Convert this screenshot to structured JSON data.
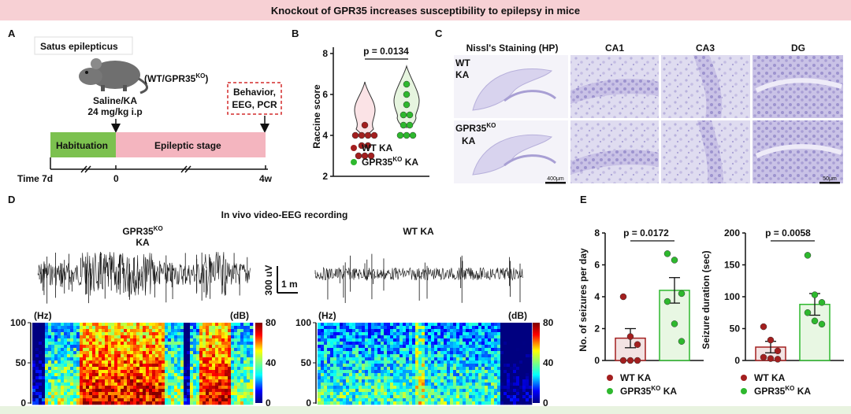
{
  "banner": "Knockout of GPR35 increases susceptibility to epilepsy in mice",
  "panels": {
    "a": "A",
    "b": "B",
    "c": "C",
    "d": "D",
    "e": "E"
  },
  "panelA": {
    "title": "Satus epilepticus",
    "genotype_prefix": "(WT/GPR35",
    "genotype_sup": "KO",
    "genotype_suffix": ")",
    "injection_line1": "Saline/KA",
    "injection_line2": "24 mg/kg i.p",
    "endpoint_line1": "Behavior,",
    "endpoint_line2": "EEG, PCR",
    "habituation": "Habituation",
    "epileptic": "Epileptic stage",
    "time_start": "Time 7d",
    "time_zero": "0",
    "time_end": "4w",
    "colors": {
      "habituation": "#7cc14f",
      "epileptic": "#f4b5bf"
    }
  },
  "panelB": {
    "ylabel": "Raccine score",
    "p_value": "p = 0.0134",
    "yticks": [
      "2",
      "4",
      "6",
      "8"
    ],
    "legend_wt": "WT KA",
    "legend_ko_prefix": "GPR35",
    "legend_ko_sup": "KO",
    "legend_ko_suffix": " KA",
    "colors": {
      "wt": "#a31f1f",
      "ko": "#2eb82e"
    }
  },
  "panelC": {
    "col_headers": [
      "Nissl's Staining (HP)",
      "CA1",
      "CA3",
      "DG"
    ],
    "row_wt": [
      "WT",
      "KA"
    ],
    "row_ko_prefix": "GPR35",
    "row_ko_sup": "KO",
    "row_ko_line2": "KA",
    "scale_big": "400μm",
    "scale_small": "50μm"
  },
  "panelD": {
    "title": "In vivo video-EEG recording",
    "ko_label_prefix": "GPR35",
    "ko_label_sup": "KO",
    "ko_label_line2": "KA",
    "wt_label": "WT KA",
    "scale_v": "300 uV",
    "scale_t": "1 m",
    "hz": "(Hz)",
    "db": "(dB)",
    "freq_ticks": [
      "100",
      "50",
      "0"
    ],
    "db_ticks": [
      "80",
      "40",
      "0"
    ]
  },
  "panelE": {
    "left_ylabel": "No. of seizures per day",
    "left_p": "p = 0.0172",
    "left_yticks": [
      "0",
      "2",
      "4",
      "6",
      "8"
    ],
    "right_ylabel": "Seizure duration (sec)",
    "right_p": "p = 0.0058",
    "right_yticks": [
      "0",
      "50",
      "100",
      "150",
      "200"
    ],
    "legend_wt": "WT KA",
    "legend_ko_prefix": "GPR35",
    "legend_ko_sup": "KO",
    "legend_ko_suffix": " KA"
  },
  "chart_data": [
    {
      "type": "violin",
      "title": "",
      "ylabel": "Raccine score",
      "ylim": [
        2,
        8
      ],
      "series": [
        {
          "name": "WT KA",
          "values": [
            3,
            3,
            3,
            3.5,
            3.5,
            4,
            4,
            4,
            4,
            4.5
          ]
        },
        {
          "name": "GPR35KO KA",
          "values": [
            4,
            4,
            4,
            4.5,
            4.5,
            5,
            5,
            5.5,
            6,
            6.5
          ]
        }
      ],
      "p_value": "p = 0.0134"
    },
    {
      "type": "bar",
      "ylabel": "No. of seizures per day",
      "ylim": [
        0,
        8
      ],
      "categories": [
        "WT KA",
        "GPR35KO KA"
      ],
      "values": [
        1.4,
        4.4
      ],
      "errors": [
        0.6,
        0.8
      ],
      "points": [
        [
          4,
          1.5,
          1,
          0,
          0,
          0
        ],
        [
          6.7,
          6.3,
          4.2,
          3.7,
          2.3,
          1.2
        ]
      ],
      "p_value": "p = 0.0172"
    },
    {
      "type": "bar",
      "ylabel": "Seizure duration (sec)",
      "ylim": [
        0,
        200
      ],
      "categories": [
        "WT KA",
        "GPR35KO KA"
      ],
      "values": [
        21,
        88
      ],
      "errors": [
        9,
        17
      ],
      "points": [
        [
          53,
          32,
          15,
          5,
          3,
          2
        ],
        [
          165,
          103,
          91,
          75,
          62,
          57
        ]
      ],
      "p_value": "p = 0.0058"
    }
  ]
}
